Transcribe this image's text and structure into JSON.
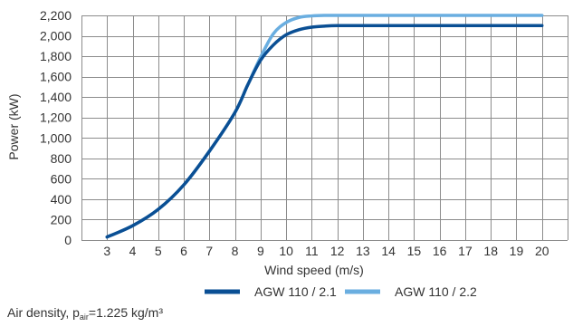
{
  "chart_data": {
    "type": "line",
    "xlabel": "Wind speed (m/s)",
    "ylabel": "Power (kW)",
    "xlim": [
      2,
      21
    ],
    "ylim": [
      0,
      2200
    ],
    "x_ticks": [
      3,
      4,
      5,
      6,
      7,
      8,
      9,
      10,
      11,
      12,
      13,
      14,
      15,
      16,
      17,
      18,
      19,
      20
    ],
    "y_ticks": [
      0,
      200,
      400,
      600,
      800,
      1000,
      1200,
      1400,
      1600,
      1800,
      2000,
      2200
    ],
    "y_tick_labels": [
      "0",
      "200",
      "400",
      "600",
      "800",
      "1,000",
      "1,200",
      "1,400",
      "1,600",
      "1,800",
      "2,000",
      "2,200"
    ],
    "grid": true,
    "legend_position": "bottom",
    "series": [
      {
        "name": "AGW 110 / 2.2",
        "color": "#6aaee0",
        "x": [
          3,
          4,
          5,
          6,
          7,
          8,
          8.5,
          9,
          9.5,
          10,
          10.5,
          11,
          11.5,
          12,
          13,
          14,
          15,
          16,
          17,
          18,
          19,
          20
        ],
        "y": [
          30,
          140,
          300,
          540,
          870,
          1250,
          1520,
          1790,
          2020,
          2130,
          2180,
          2195,
          2200,
          2200,
          2200,
          2200,
          2200,
          2200,
          2200,
          2200,
          2200,
          2200
        ]
      },
      {
        "name": "AGW 110 / 2.1",
        "color": "#0a4f94",
        "x": [
          3,
          4,
          5,
          6,
          7,
          8,
          8.5,
          9,
          9.5,
          10,
          10.5,
          11,
          11.5,
          12,
          13,
          14,
          15,
          16,
          17,
          18,
          19,
          20
        ],
        "y": [
          30,
          140,
          300,
          540,
          870,
          1250,
          1520,
          1760,
          1910,
          2010,
          2060,
          2085,
          2095,
          2100,
          2100,
          2100,
          2100,
          2100,
          2100,
          2100,
          2100,
          2100
        ]
      }
    ],
    "legend": [
      {
        "name": "AGW 110 / 2.1",
        "color": "#0a4f94"
      },
      {
        "name": "AGW 110 / 2.2",
        "color": "#6aaee0"
      }
    ],
    "footnote": {
      "prefix": "Air density, p",
      "subscript": "air",
      "suffix": "=1.225 kg/m³"
    }
  }
}
